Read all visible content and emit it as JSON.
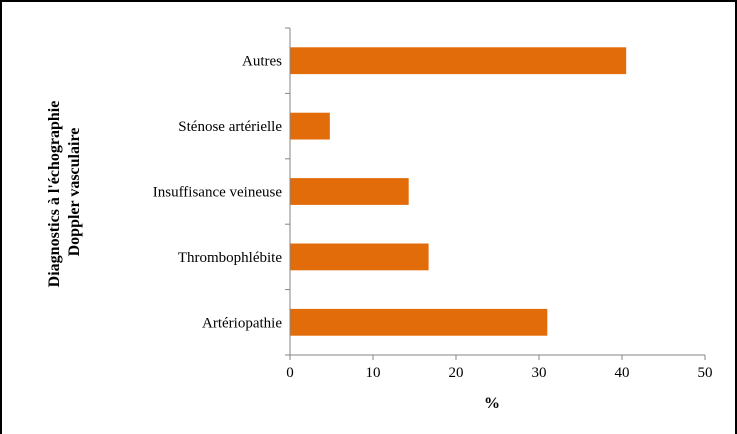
{
  "chart_data": {
    "type": "bar",
    "orientation": "horizontal",
    "categories": [
      "Artériopathie",
      "Thrombophlébite",
      "Insuffisance veineuse",
      "Sténose artérielle",
      "Autres"
    ],
    "values": [
      31,
      16.7,
      14.3,
      4.8,
      40.5
    ],
    "xlabel": "%",
    "ylabel_lines": [
      "Diagnostics à l'échographie",
      "Doppler vasculaire"
    ],
    "xlim": [
      0,
      50
    ],
    "xticks": [
      0,
      10,
      20,
      30,
      40,
      50
    ],
    "grid": false,
    "bar_color": "#E36C0A"
  }
}
